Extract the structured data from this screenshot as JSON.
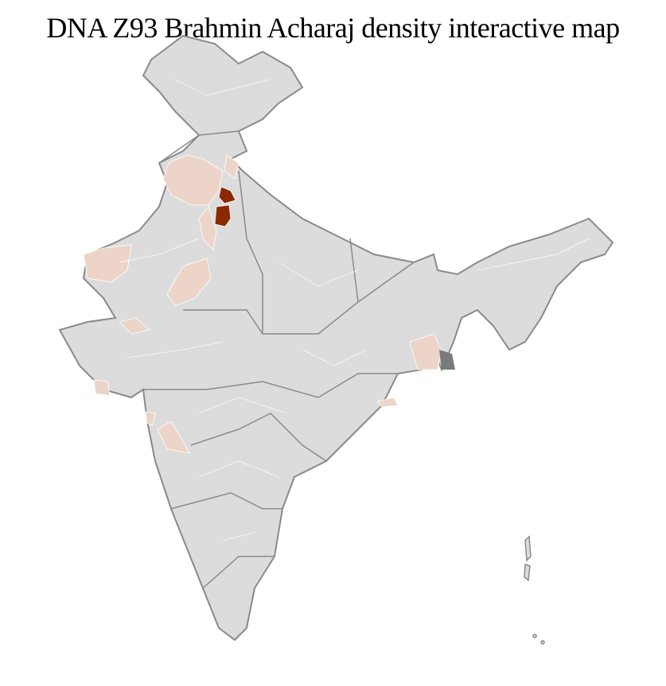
{
  "title": "DNA Z93 Brahmin Acharaj density interactive map",
  "colors": {
    "base_fill": "#dcdcdc",
    "district_border": "#ffffff",
    "state_border": "#8a8a8a",
    "low_density": "#ecd5c8",
    "high_density": "#8b2a00",
    "other": "#7a7a7a"
  },
  "legend": null
}
